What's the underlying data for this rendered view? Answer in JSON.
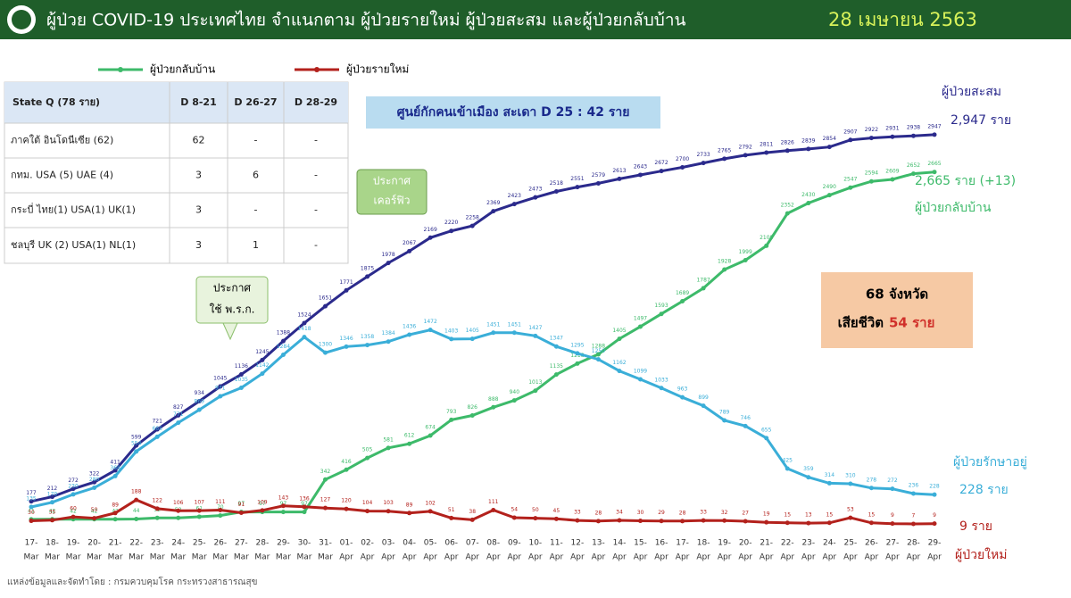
{
  "header": {
    "title": "ผู้ป่วย COVID-19 ประเทศไทย จำแนกตาม ผู้ป่วยรายใหม่ ผู้ป่วยสะสม  และผู้ป่วยกลับบ้าน",
    "date": "28 เมษายน 2563"
  },
  "table": {
    "header": [
      "State Q   (78 ราย)",
      "D 8-21",
      "D 26-27",
      "D 28-29"
    ],
    "rows": [
      [
        "ภาคใต้ อินโดนีเซีย (62)",
        "62",
        "-",
        "-"
      ],
      [
        "กทม. USA (5) UAE (4)",
        "3",
        "6",
        "-"
      ],
      [
        "กระบี่ ไทย(1) USA(1) UK(1)",
        "3",
        "-",
        "-"
      ],
      [
        "ชลบุรี UK (2) USA(1) NL(1)",
        "3",
        "1",
        "-"
      ]
    ]
  },
  "info_box": [
    "68 จังหวัด",
    "เสียชีวิต",
    "54 ราย"
  ],
  "source": "แหล่งข้อมูลและจัดทำโดย : กรมควบคุมโรค กระทรวงสาธารณสุข",
  "chart_data": {
    "type": "line",
    "categories": [
      [
        "17-",
        "Mar"
      ],
      [
        "18-",
        "Mar"
      ],
      [
        "19-",
        "Mar"
      ],
      [
        "20-",
        "Mar"
      ],
      [
        "21-",
        "Mar"
      ],
      [
        "22-",
        "Mar"
      ],
      [
        "23-",
        "Mar"
      ],
      [
        "24-",
        "Mar"
      ],
      [
        "25-",
        "Mar"
      ],
      [
        "26-",
        "Mar"
      ],
      [
        "27-",
        "Mar"
      ],
      [
        "28-",
        "Mar"
      ],
      [
        "29-",
        "Mar"
      ],
      [
        "30-",
        "Mar"
      ],
      [
        "31-",
        "Mar"
      ],
      [
        "01-",
        "Apr"
      ],
      [
        "02-",
        "Apr"
      ],
      [
        "03-",
        "Apr"
      ],
      [
        "04-",
        "Apr"
      ],
      [
        "05-",
        "Apr"
      ],
      [
        "06-",
        "Apr"
      ],
      [
        "07-",
        "Apr"
      ],
      [
        "08-",
        "Apr"
      ],
      [
        "09-",
        "Apr"
      ],
      [
        "10-",
        "Apr"
      ],
      [
        "11-",
        "Apr"
      ],
      [
        "12-",
        "Apr"
      ],
      [
        "13-",
        "Apr"
      ],
      [
        "14-",
        "Apr"
      ],
      [
        "15-",
        "Apr"
      ],
      [
        "16-",
        "Apr"
      ],
      [
        "17-",
        "Apr"
      ],
      [
        "18-",
        "Apr"
      ],
      [
        "19-",
        "Apr"
      ],
      [
        "20-",
        "Apr"
      ],
      [
        "21-",
        "Apr"
      ],
      [
        "22-",
        "Apr"
      ],
      [
        "23-",
        "Apr"
      ],
      [
        "24-",
        "Apr"
      ],
      [
        "25-",
        "Apr"
      ],
      [
        "26-",
        "Apr"
      ],
      [
        "27-",
        "Apr"
      ],
      [
        "28-",
        "Apr"
      ],
      [
        "29-",
        "Apr"
      ]
    ],
    "ylim": [
      0,
      3000
    ],
    "series": [
      {
        "name": "ผู้ป่วยสะสม",
        "color": "#2b2a8c",
        "values": [
          177,
          212,
          272,
          322,
          411,
          599,
          721,
          827,
          934,
          1045,
          1136,
          1245,
          1388,
          1524,
          1651,
          1771,
          1875,
          1978,
          2067,
          2169,
          2220,
          2258,
          2369,
          2423,
          2473,
          2518,
          2551,
          2579,
          2613,
          2643,
          2672,
          2700,
          2733,
          2765,
          2792,
          2811,
          2826,
          2839,
          2854,
          2907,
          2922,
          2931,
          2938,
          2947
        ]
      },
      {
        "name": "ผู้ป่วยกลับบ้าน",
        "color": "#3dba6a",
        "values": [
          41,
          42,
          42,
          42,
          42,
          44,
          52,
          52,
          61,
          70,
          97,
          97,
          97,
          97,
          342,
          416,
          505,
          581,
          612,
          674,
          793,
          826,
          888,
          940,
          1013,
          1135,
          1218,
          1288,
          1405,
          1497,
          1593,
          1689,
          1787,
          1928,
          1999,
          2108,
          2352,
          2430,
          2490,
          2547,
          2594,
          2609,
          2652,
          2665
        ]
      },
      {
        "name": "ผู้ป่วยรักษาอยู่",
        "color": "#3aaed8",
        "values": [
          135,
          170,
          230,
          280,
          368,
          554,
          665,
          771,
          869,
          971,
          1035,
          1142,
          1284,
          1418,
          1300,
          1346,
          1358,
          1384,
          1436,
          1472,
          1403,
          1405,
          1451,
          1451,
          1427,
          1347,
          1295,
          1250,
          1162,
          1099,
          1033,
          963,
          899,
          789,
          746,
          655,
          425,
          359,
          314,
          310,
          278,
          272,
          236,
          228
        ]
      },
      {
        "name": "ผู้ป่วยรายใหม่",
        "color": "#b3211c",
        "values": [
          30,
          35,
          60,
          50,
          89,
          188,
          122,
          106,
          107,
          111,
          91,
          109,
          143,
          136,
          127,
          120,
          104,
          103,
          89,
          102,
          51,
          38,
          111,
          54,
          50,
          45,
          33,
          28,
          34,
          30,
          29,
          28,
          33,
          32,
          27,
          19,
          15,
          13,
          15,
          53,
          15,
          9,
          7,
          9
        ]
      }
    ],
    "annotations": [
      "ศูนย์กักคนเข้าเมือง  สะเดา  D 25 : 42 ราย",
      "ประกาศ",
      "เคอร์ฟิว",
      "ประกาศ",
      "ใช้ พ.ร.ก.",
      "2,947 ราย",
      "2,665 ราย (+13)",
      "228 ราย",
      "9 ราย",
      "ผู้ป่วยใหม่"
    ]
  }
}
